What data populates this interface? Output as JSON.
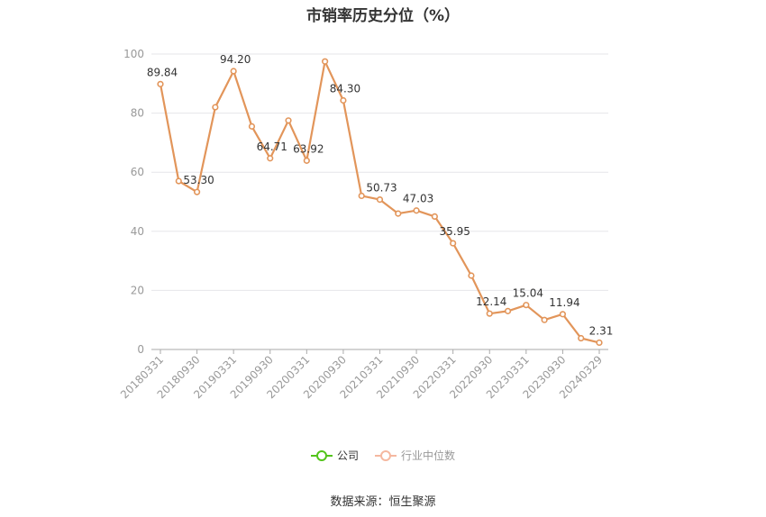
{
  "title": "市销率历史分位（%）",
  "source": "数据来源：恒生聚源",
  "legend": [
    {
      "label": "公司",
      "color": "#52c41a"
    },
    {
      "label": "行业中位数",
      "color": "#f5b8a0"
    }
  ],
  "chart_data": {
    "type": "line",
    "title": "市销率历史分位（%）",
    "xlabel": "",
    "ylabel": "",
    "ylim": [
      0,
      100
    ],
    "yticks": [
      0,
      20,
      40,
      60,
      80,
      100
    ],
    "grid": true,
    "legend_position": "bottom",
    "categories": [
      "20180331",
      "20180630",
      "20180930",
      "20181231",
      "20190331",
      "20190630",
      "20190930",
      "20191231",
      "20200331",
      "20200630",
      "20200930",
      "20201231",
      "20210331",
      "20210630",
      "20210930",
      "20211231",
      "20220331",
      "20220630",
      "20220930",
      "20221231",
      "20230331",
      "20230630",
      "20230930",
      "20231231",
      "20240329"
    ],
    "x_tick_labels": [
      "20180331",
      "20180930",
      "20190331",
      "20190930",
      "20200331",
      "20200930",
      "20210331",
      "20210930",
      "20220331",
      "20220930",
      "20230331",
      "20230930",
      "20240329"
    ],
    "series": [
      {
        "name": "公司",
        "color": "#e2955a",
        "values": [
          89.84,
          57.0,
          53.3,
          82.0,
          94.2,
          75.5,
          64.71,
          77.5,
          63.92,
          97.5,
          84.3,
          52.0,
          50.73,
          46.0,
          47.03,
          45.0,
          35.95,
          25.0,
          12.14,
          13.0,
          15.04,
          10.0,
          11.94,
          3.8,
          2.31
        ],
        "labels": [
          "89.84",
          null,
          "53.30",
          null,
          "94.20",
          null,
          "64.71",
          null,
          "63.92",
          null,
          "84.30",
          null,
          "50.73",
          null,
          "47.03",
          null,
          "35.95",
          null,
          "12.14",
          null,
          "15.04",
          null,
          "11.94",
          null,
          "2.31"
        ]
      }
    ]
  }
}
